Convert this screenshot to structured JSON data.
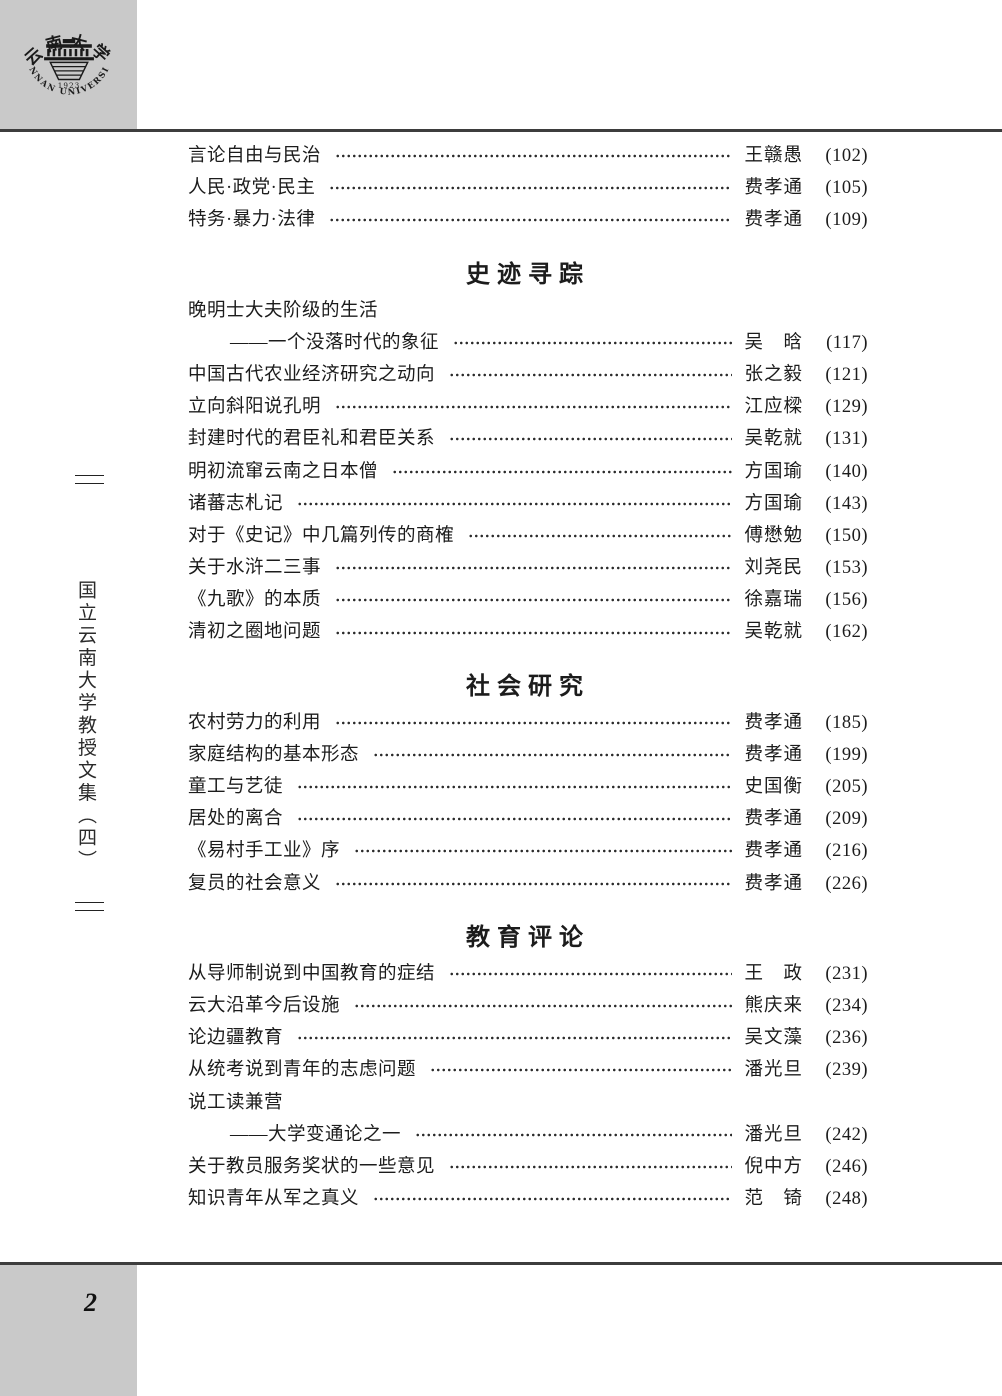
{
  "colors": {
    "band_gray": "#c9c9c9",
    "rule": "#3d3d3d",
    "ink": "#1c1c1c"
  },
  "page": {
    "folio": "2",
    "spine_title": "国立云南大学教授文集（四）",
    "logo": {
      "zh": "云南大学",
      "year": "1923",
      "en": "YUNNAN UNIVERSITY"
    }
  },
  "toc": {
    "pre_entries": [
      {
        "title": "言论自由与民治",
        "author": "王赣愚",
        "page": "(102)",
        "indent": false,
        "leader": true
      },
      {
        "title": "人民·政党·民主",
        "author": "费孝通",
        "page": "(105)",
        "indent": false,
        "leader": true
      },
      {
        "title": "特务·暴力·法律",
        "author": "费孝通",
        "page": "(109)",
        "indent": false,
        "leader": true
      }
    ],
    "sections": [
      {
        "title": "史迹寻踪",
        "entries": [
          {
            "title": "晚明士大夫阶级的生活",
            "author": "",
            "page": "",
            "indent": false,
            "leader": false
          },
          {
            "title": "——一个没落时代的象征",
            "author": "吴　晗",
            "page": "(117)",
            "indent": true,
            "leader": true
          },
          {
            "title": "中国古代农业经济研究之动向",
            "author": "张之毅",
            "page": "(121)",
            "indent": false,
            "leader": true
          },
          {
            "title": "立向斜阳说孔明",
            "author": "江应樑",
            "page": "(129)",
            "indent": false,
            "leader": true
          },
          {
            "title": "封建时代的君臣礼和君臣关系",
            "author": "吴乾就",
            "page": "(131)",
            "indent": false,
            "leader": true
          },
          {
            "title": "明初流窜云南之日本僧",
            "author": "方国瑜",
            "page": "(140)",
            "indent": false,
            "leader": true
          },
          {
            "title": "诸蕃志札记",
            "author": "方国瑜",
            "page": "(143)",
            "indent": false,
            "leader": true
          },
          {
            "title": "对于《史记》中几篇列传的商榷",
            "author": "傅懋勉",
            "page": "(150)",
            "indent": false,
            "leader": true
          },
          {
            "title": "关于水浒二三事",
            "author": "刘尧民",
            "page": "(153)",
            "indent": false,
            "leader": true
          },
          {
            "title": "《九歌》的本质",
            "author": "徐嘉瑞",
            "page": "(156)",
            "indent": false,
            "leader": true
          },
          {
            "title": "清初之圈地问题",
            "author": "吴乾就",
            "page": "(162)",
            "indent": false,
            "leader": true
          }
        ]
      },
      {
        "title": "社会研究",
        "entries": [
          {
            "title": "农村劳力的利用",
            "author": "费孝通",
            "page": "(185)",
            "indent": false,
            "leader": true
          },
          {
            "title": "家庭结构的基本形态",
            "author": "费孝通",
            "page": "(199)",
            "indent": false,
            "leader": true
          },
          {
            "title": "童工与艺徒",
            "author": "史国衡",
            "page": "(205)",
            "indent": false,
            "leader": true
          },
          {
            "title": "居处的离合",
            "author": "费孝通",
            "page": "(209)",
            "indent": false,
            "leader": true
          },
          {
            "title": "《易村手工业》序",
            "author": "费孝通",
            "page": "(216)",
            "indent": false,
            "leader": true
          },
          {
            "title": "复员的社会意义",
            "author": "费孝通",
            "page": "(226)",
            "indent": false,
            "leader": true
          }
        ]
      },
      {
        "title": "教育评论",
        "entries": [
          {
            "title": "从导师制说到中国教育的症结",
            "author": "王　政",
            "page": "(231)",
            "indent": false,
            "leader": true
          },
          {
            "title": "云大沿革今后设施",
            "author": "熊庆来",
            "page": "(234)",
            "indent": false,
            "leader": true
          },
          {
            "title": "论边疆教育",
            "author": "吴文藻",
            "page": "(236)",
            "indent": false,
            "leader": true
          },
          {
            "title": "从统考说到青年的志虑问题",
            "author": "潘光旦",
            "page": "(239)",
            "indent": false,
            "leader": true
          },
          {
            "title": "说工读兼营",
            "author": "",
            "page": "",
            "indent": false,
            "leader": false
          },
          {
            "title": "——大学变通论之一",
            "author": "潘光旦",
            "page": "(242)",
            "indent": true,
            "leader": true
          },
          {
            "title": "关于教员服务奖状的一些意见",
            "author": "倪中方",
            "page": "(246)",
            "indent": false,
            "leader": true
          },
          {
            "title": "知识青年从军之真义",
            "author": "范　锜",
            "page": "(248)",
            "indent": false,
            "leader": true
          }
        ]
      }
    ]
  }
}
